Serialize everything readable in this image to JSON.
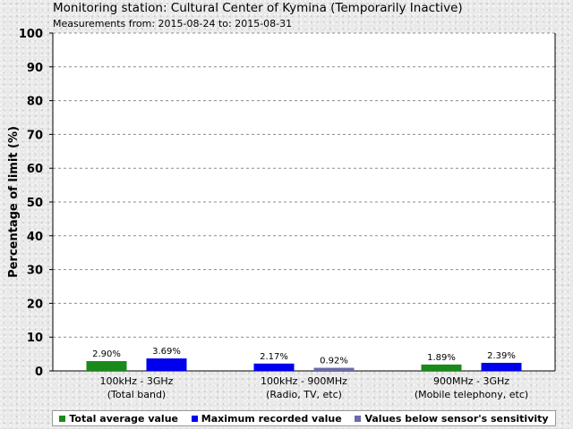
{
  "title": "Monitoring station: Cultural Center of Kymina (Temporarily Inactive)",
  "subtitle": "Measurements from: 2015-08-24 to: 2015-08-31",
  "chart_data": {
    "type": "bar",
    "ylabel": "Percentage of limit (%)",
    "ylim": [
      0,
      100
    ],
    "yticks": [
      0,
      10,
      20,
      30,
      40,
      50,
      60,
      70,
      80,
      90,
      100
    ],
    "grid": true,
    "legend_position": "bottom",
    "categories": [
      {
        "line1": "100kHz - 3GHz",
        "line2": "(Total band)"
      },
      {
        "line1": "100kHz - 900MHz",
        "line2": "(Radio, TV, etc)"
      },
      {
        "line1": "900MHz - 3GHz",
        "line2": "(Mobile telephony, etc)"
      }
    ],
    "series": [
      {
        "name": "Total average value",
        "color": "#1a8a1a",
        "values": [
          2.9,
          null,
          1.89
        ],
        "labels": [
          "2.90%",
          null,
          "1.89%"
        ]
      },
      {
        "name": "Maximum recorded value",
        "color": "#0000ee",
        "values": [
          3.69,
          2.17,
          2.39
        ],
        "labels": [
          "3.69%",
          "2.17%",
          "2.39%"
        ]
      },
      {
        "name": "Values below sensor's sensitivity",
        "color": "#6b6ba8",
        "values": [
          null,
          0.92,
          null
        ],
        "labels": [
          null,
          "0.92%",
          null
        ]
      }
    ]
  }
}
